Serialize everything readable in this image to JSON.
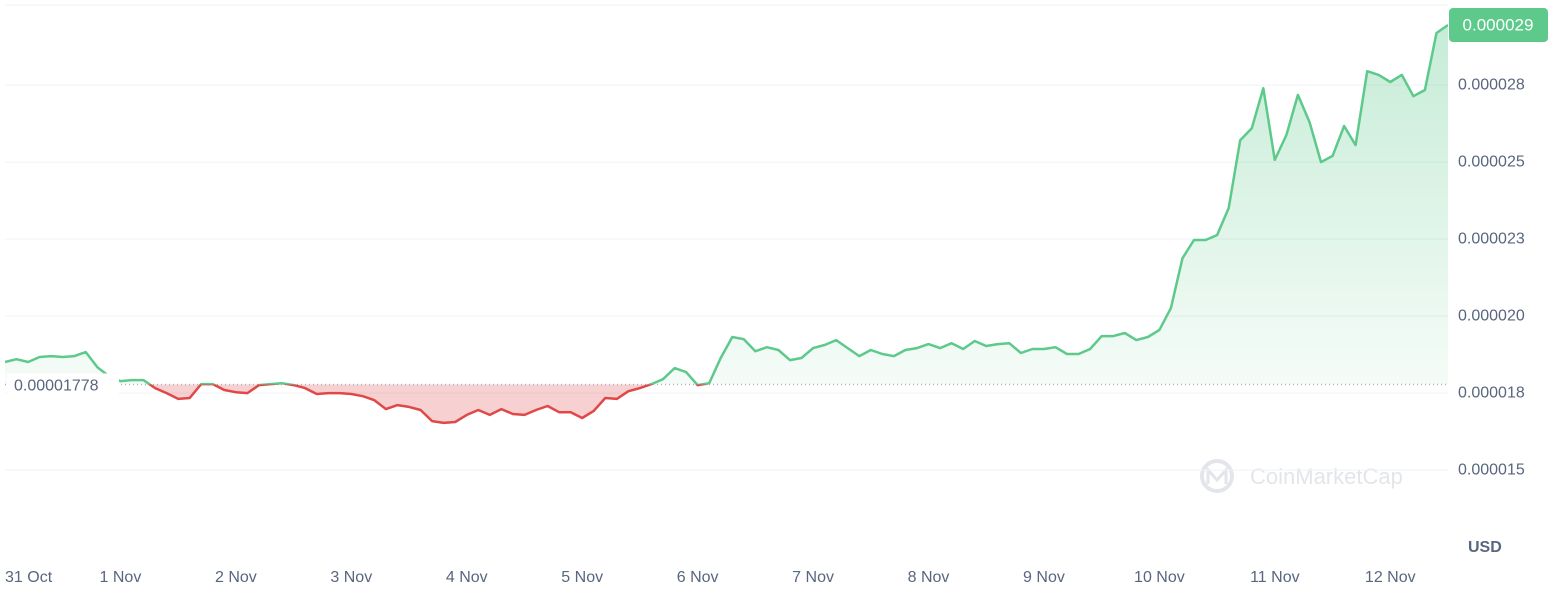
{
  "chart_data": {
    "type": "line",
    "x": [
      0,
      0.1,
      0.2,
      0.3,
      0.4,
      0.5,
      0.6,
      0.7,
      0.8,
      0.9,
      1,
      1.1,
      1.2,
      1.3,
      1.4,
      1.5,
      1.6,
      1.7,
      1.8,
      1.9,
      2,
      2.1,
      2.2,
      2.3,
      2.4,
      2.5,
      2.6,
      2.7,
      2.8,
      2.9,
      3,
      3.1,
      3.2,
      3.3,
      3.4,
      3.5,
      3.6,
      3.7,
      3.8,
      3.9,
      4,
      4.1,
      4.2,
      4.3,
      4.4,
      4.5,
      4.6,
      4.7,
      4.8,
      4.9,
      5,
      5.1,
      5.2,
      5.3,
      5.4,
      5.5,
      5.6,
      5.7,
      5.8,
      5.9,
      6,
      6.1,
      6.2,
      6.3,
      6.4,
      6.5,
      6.6,
      6.7,
      6.8,
      6.9,
      7,
      7.1,
      7.2,
      7.3,
      7.4,
      7.5,
      7.6,
      7.7,
      7.8,
      7.9,
      8,
      8.1,
      8.2,
      8.3,
      8.4,
      8.5,
      8.6,
      8.7,
      8.8,
      8.9,
      9,
      9.1,
      9.2,
      9.3,
      9.4,
      9.5,
      9.6,
      9.7,
      9.8,
      9.9,
      10,
      10.1,
      10.2,
      10.3,
      10.4,
      10.5,
      10.6,
      10.7,
      10.8,
      10.9,
      11,
      11.1,
      11.2,
      11.3,
      11.4,
      11.5,
      11.6,
      11.7,
      11.8,
      11.9,
      12,
      12.1,
      12.2,
      12.3,
      12.4,
      12.5
    ],
    "series": [
      {
        "color": "#5dc98b",
        "down_color": "#e04848",
        "values": [
          1.851e-05,
          1.86e-05,
          1.851e-05,
          1.867e-05,
          1.87e-05,
          1.867e-05,
          1.87e-05,
          1.883e-05,
          1.834e-05,
          1.805e-05,
          1.789e-05,
          1.792e-05,
          1.792e-05,
          1.766e-05,
          1.75e-05,
          1.731e-05,
          1.734e-05,
          1.779e-05,
          1.779e-05,
          1.76e-05,
          1.753e-05,
          1.75e-05,
          1.776e-05,
          1.779e-05,
          1.782e-05,
          1.776e-05,
          1.766e-05,
          1.747e-05,
          1.75e-05,
          1.75e-05,
          1.747e-05,
          1.74e-05,
          1.727e-05,
          1.698e-05,
          1.711e-05,
          1.705e-05,
          1.695e-05,
          1.659e-05,
          1.653e-05,
          1.656e-05,
          1.679e-05,
          1.695e-05,
          1.679e-05,
          1.698e-05,
          1.682e-05,
          1.679e-05,
          1.695e-05,
          1.708e-05,
          1.688e-05,
          1.688e-05,
          1.669e-05,
          1.692e-05,
          1.734e-05,
          1.731e-05,
          1.756e-05,
          1.766e-05,
          1.779e-05,
          1.795e-05,
          1.831e-05,
          1.818e-05,
          1.776e-05,
          1.782e-05,
          1.864e-05,
          1.932e-05,
          1.925e-05,
          1.886e-05,
          1.899e-05,
          1.89e-05,
          1.857e-05,
          1.864e-05,
          1.896e-05,
          1.906e-05,
          1.922e-05,
          1.896e-05,
          1.87e-05,
          1.89e-05,
          1.877e-05,
          1.87e-05,
          1.89e-05,
          1.896e-05,
          1.909e-05,
          1.896e-05,
          1.912e-05,
          1.893e-05,
          1.919e-05,
          1.903e-05,
          1.909e-05,
          1.912e-05,
          1.88e-05,
          1.893e-05,
          1.893e-05,
          1.899e-05,
          1.877e-05,
          1.877e-05,
          1.893e-05,
          1.935e-05,
          1.935e-05,
          1.945e-05,
          1.922e-05,
          1.932e-05,
          1.955e-05,
          2.026e-05,
          2.188e-05,
          2.247e-05,
          2.247e-05,
          2.263e-05,
          2.351e-05,
          2.571e-05,
          2.61e-05,
          2.74e-05,
          2.507e-05,
          2.588e-05,
          2.718e-05,
          2.63e-05,
          2.5e-05,
          2.52e-05,
          2.617e-05,
          2.555e-05,
          2.795e-05,
          2.783e-05,
          2.76e-05,
          2.783e-05,
          2.714e-05,
          2.734e-05,
          2.919e-05,
          2.945e-05
        ]
      }
    ],
    "baseline": 1.778e-05,
    "current_price": {
      "value": 2.945e-05,
      "label": "0.000029"
    },
    "xlim": [
      0,
      12.5
    ],
    "xticks": [
      {
        "value": 0,
        "label": "31 Oct"
      },
      {
        "value": 1,
        "label": "1 Nov"
      },
      {
        "value": 2,
        "label": "2 Nov"
      },
      {
        "value": 3,
        "label": "3 Nov"
      },
      {
        "value": 4,
        "label": "4 Nov"
      },
      {
        "value": 5,
        "label": "5 Nov"
      },
      {
        "value": 6,
        "label": "6 Nov"
      },
      {
        "value": 7,
        "label": "7 Nov"
      },
      {
        "value": 8,
        "label": "8 Nov"
      },
      {
        "value": 9,
        "label": "9 Nov"
      },
      {
        "value": 10,
        "label": "10 Nov"
      },
      {
        "value": 11,
        "label": "11 Nov"
      },
      {
        "value": 12,
        "label": "12 Nov"
      }
    ],
    "ylim": [
      1.234e-05,
      3.01e-05
    ],
    "yticks": [
      {
        "value": 1.5e-05,
        "label": "0.000015"
      },
      {
        "value": 1.75e-05,
        "label": "0.000018"
      },
      {
        "value": 2e-05,
        "label": "0.000020"
      },
      {
        "value": 2.25e-05,
        "label": "0.000023"
      },
      {
        "value": 2.5e-05,
        "label": "0.000025"
      },
      {
        "value": 2.75e-05,
        "label": "0.000028"
      }
    ],
    "grid": true,
    "currency": "USD",
    "watermark": "CoinMarketCap"
  }
}
